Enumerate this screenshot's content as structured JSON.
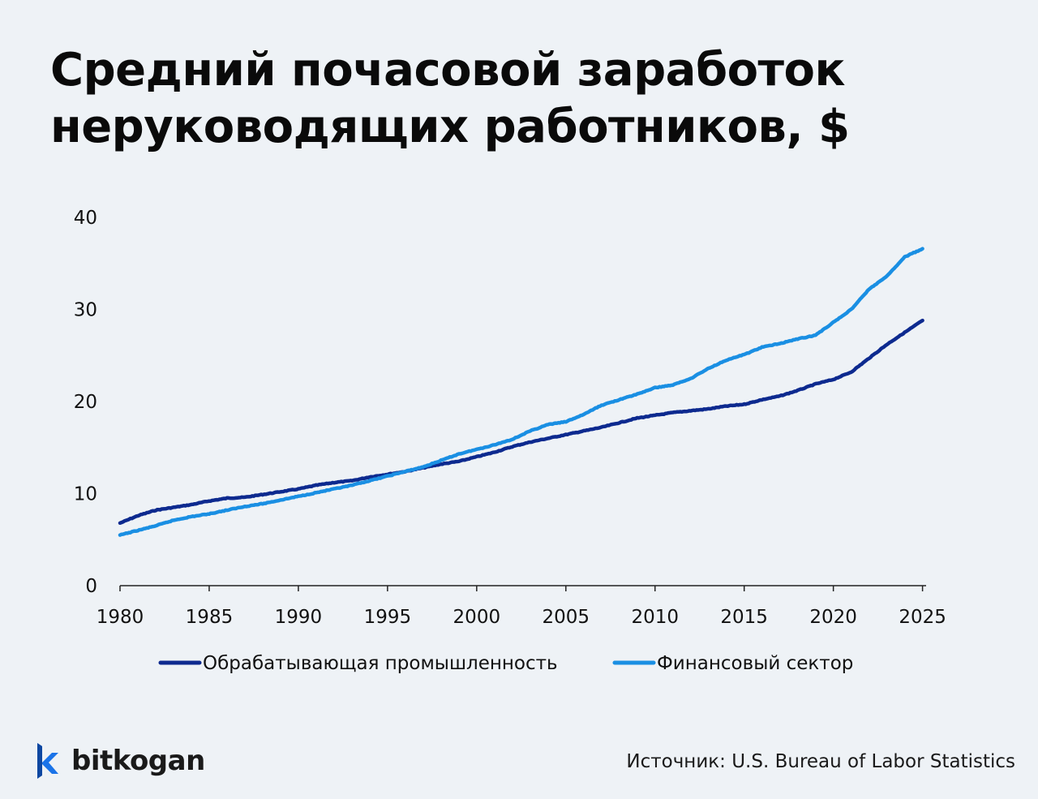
{
  "title_line1": "Средний почасовой заработок",
  "title_line2": "неруководящих работников, $",
  "source": "Источник: U.S. Bureau of Labor Statistics",
  "brand": "bitkogan",
  "icons": {
    "logo": "bitkogan-k-logo-icon"
  },
  "colors": {
    "manufacturing": "#0d2a8f",
    "finance": "#1a8fe3",
    "axis": "#222222"
  },
  "chart_data": {
    "type": "line",
    "title": "Средний почасовой заработок неруководящих работников, $",
    "xlabel": "",
    "ylabel": "",
    "xlim": [
      1980,
      2025.2
    ],
    "ylim": [
      0,
      40
    ],
    "x_ticks": [
      1980,
      1985,
      1990,
      1995,
      2000,
      2005,
      2010,
      2015,
      2020,
      2025
    ],
    "y_ticks": [
      0,
      10,
      20,
      30,
      40
    ],
    "grid": false,
    "legend_position": "bottom",
    "series": [
      {
        "name": "Обрабатывающая промышленность",
        "color": "#0d2a8f",
        "x": [
          1980,
          1981,
          1982,
          1983,
          1984,
          1985,
          1986,
          1987,
          1988,
          1989,
          1990,
          1991,
          1992,
          1993,
          1994,
          1995,
          1996,
          1997,
          1998,
          1999,
          2000,
          2001,
          2002,
          2003,
          2004,
          2005,
          2006,
          2007,
          2008,
          2009,
          2010,
          2011,
          2012,
          2013,
          2014,
          2015,
          2016,
          2017,
          2018,
          2019,
          2020,
          2021,
          2022,
          2023,
          2024,
          2025
        ],
        "values": [
          6.8,
          7.6,
          8.2,
          8.5,
          8.8,
          9.2,
          9.5,
          9.6,
          9.9,
          10.2,
          10.5,
          10.9,
          11.2,
          11.4,
          11.8,
          12.1,
          12.4,
          12.8,
          13.2,
          13.5,
          14.0,
          14.5,
          15.1,
          15.6,
          16.0,
          16.4,
          16.8,
          17.2,
          17.7,
          18.2,
          18.5,
          18.8,
          19.0,
          19.2,
          19.5,
          19.7,
          20.2,
          20.6,
          21.2,
          21.9,
          22.4,
          23.2,
          24.7,
          26.2,
          27.5,
          28.8
        ]
      },
      {
        "name": "Финансовый сектор",
        "color": "#1a8fe3",
        "x": [
          1980,
          1981,
          1982,
          1983,
          1984,
          1985,
          1986,
          1987,
          1988,
          1989,
          1990,
          1991,
          1992,
          1993,
          1994,
          1995,
          1996,
          1997,
          1998,
          1999,
          2000,
          2001,
          2002,
          2003,
          2004,
          2005,
          2006,
          2007,
          2008,
          2009,
          2010,
          2011,
          2012,
          2013,
          2014,
          2015,
          2016,
          2017,
          2018,
          2019,
          2020,
          2021,
          2022,
          2023,
          2024,
          2025
        ],
        "values": [
          5.5,
          6.0,
          6.5,
          7.1,
          7.5,
          7.8,
          8.2,
          8.6,
          8.9,
          9.3,
          9.7,
          10.1,
          10.5,
          10.9,
          11.4,
          11.9,
          12.4,
          12.9,
          13.6,
          14.3,
          14.8,
          15.3,
          15.9,
          16.8,
          17.5,
          17.8,
          18.6,
          19.6,
          20.2,
          20.8,
          21.5,
          21.8,
          22.5,
          23.6,
          24.5,
          25.1,
          25.9,
          26.3,
          26.8,
          27.2,
          28.6,
          30.0,
          32.2,
          33.6,
          35.7,
          36.6
        ]
      }
    ]
  }
}
